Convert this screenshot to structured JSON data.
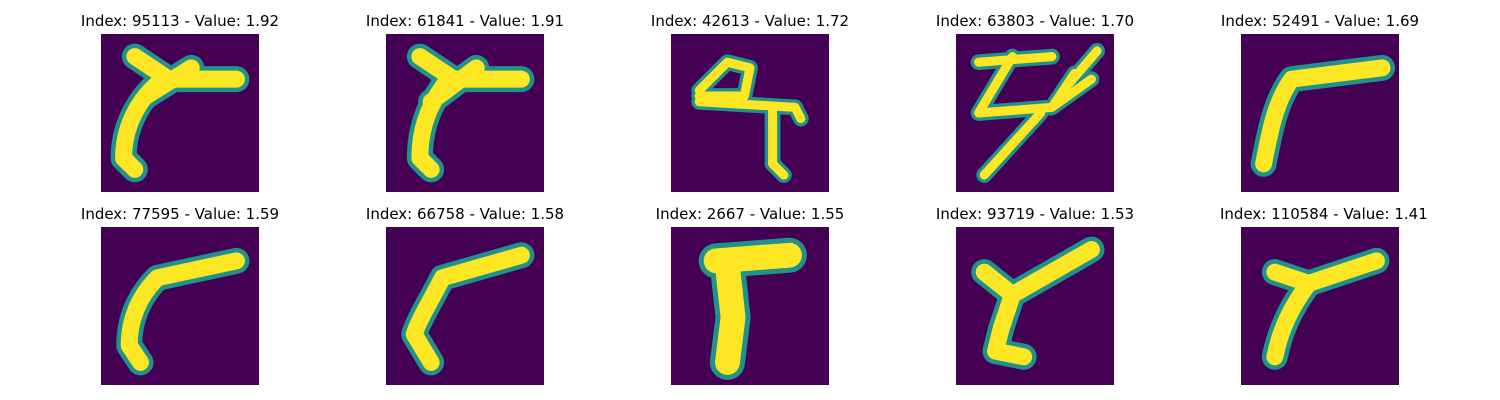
{
  "panels": [
    {
      "title": "Index: 95113 - Value: 1.92"
    },
    {
      "title": "Index: 61841 - Value: 1.91"
    },
    {
      "title": "Index: 42613 - Value: 1.72"
    },
    {
      "title": "Index: 63803 - Value: 1.70"
    },
    {
      "title": "Index: 52491 - Value: 1.69"
    },
    {
      "title": "Index: 77595 - Value: 1.59"
    },
    {
      "title": "Index: 66758 - Value: 1.58"
    },
    {
      "title": "Index: 2667 - Value: 1.55"
    },
    {
      "title": "Index: 93719 - Value: 1.53"
    },
    {
      "title": "Index: 110584 - Value: 1.41"
    }
  ],
  "colors": {
    "background": "#440154",
    "stroke_edge": "#21918c",
    "stroke_core": "#fde725"
  }
}
